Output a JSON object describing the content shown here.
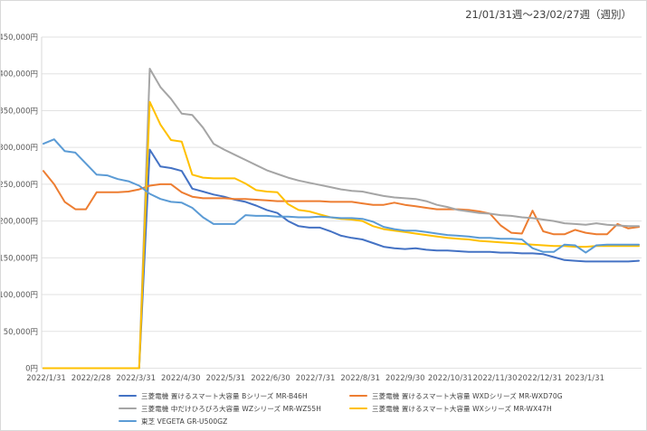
{
  "title": "21/01/31週〜23/02/27週（週別）",
  "chart_data": {
    "type": "line",
    "title": "21/01/31週〜23/02/27週（週別）",
    "x_axis": {
      "unit": "week",
      "tick_labels": [
        "2022/1/31",
        "2022/2/28",
        "2022/3/31",
        "2022/4/30",
        "2022/5/31",
        "2022/6/30",
        "2022/7/31",
        "2022/8/31",
        "2022/9/30",
        "2022/10/31",
        "2022/11/30",
        "2022/12/31",
        "2023/1/31"
      ]
    },
    "y_axis": {
      "min": 0,
      "max": 450000,
      "step": 50000,
      "tick_labels": [
        "0円",
        "50,000円",
        "100,000円",
        "150,000円",
        "200,000円",
        "250,000円",
        "300,000円",
        "350,000円",
        "400,000円",
        "450,000円"
      ]
    },
    "grid": true,
    "legend_position": "bottom",
    "colors": {
      "grid": "#e2e2e2",
      "axis": "#d9d9d9",
      "axis_text": "#595959",
      "title_text": "#404040"
    },
    "series": [
      {
        "name": "三菱電機 置けるスマート大容量 Bシリーズ MR-B46H",
        "color": "#4472C4",
        "values": [
          0,
          0,
          0,
          0,
          0,
          0,
          0,
          0,
          0,
          0,
          297000,
          274000,
          272000,
          268000,
          244000,
          240000,
          236000,
          233000,
          229000,
          226000,
          221000,
          215000,
          211000,
          200000,
          193000,
          191000,
          191000,
          186000,
          180000,
          177000,
          175000,
          170000,
          165000,
          163000,
          162000,
          163000,
          161000,
          160000,
          160000,
          159000,
          158000,
          158000,
          158000,
          157000,
          157000,
          156000,
          156000,
          155000,
          151000,
          147000,
          146000,
          145000,
          145000,
          145000,
          145000,
          145000,
          146000
        ]
      },
      {
        "name": "三菱電機 置けるスマート大容量 WXDシリーズ MR-WXD70G",
        "color": "#ED7D31",
        "values": [
          268000,
          250000,
          226000,
          216000,
          216000,
          239000,
          239000,
          239000,
          240000,
          243000,
          248000,
          250000,
          250000,
          239000,
          233000,
          231000,
          231000,
          231000,
          230000,
          230000,
          229000,
          228000,
          227000,
          227000,
          227000,
          227000,
          227000,
          226000,
          226000,
          226000,
          224000,
          222000,
          222000,
          225000,
          222000,
          220000,
          218000,
          216000,
          216000,
          216000,
          215000,
          213000,
          210000,
          194000,
          184000,
          183000,
          214000,
          186000,
          182000,
          182000,
          188000,
          184000,
          182000,
          182000,
          196000,
          190000,
          192000
        ]
      },
      {
        "name": "三菱電機 中だけひろびろ大容量 WZシリーズ MR-WZ55H",
        "color": "#A5A5A5",
        "values": [
          0,
          0,
          0,
          0,
          0,
          0,
          0,
          0,
          0,
          0,
          407000,
          382000,
          366000,
          346000,
          344000,
          327000,
          305000,
          297000,
          290000,
          283000,
          276000,
          269000,
          264000,
          259000,
          255000,
          252000,
          249000,
          246000,
          243000,
          241000,
          240000,
          237000,
          234000,
          232000,
          231000,
          230000,
          227000,
          222000,
          219000,
          215000,
          213000,
          211000,
          210000,
          208000,
          207000,
          205000,
          204000,
          202000,
          200000,
          197000,
          196000,
          195000,
          197000,
          195000,
          194000,
          193000,
          193000
        ]
      },
      {
        "name": "三菱電機 置けるスマート大容量 WXシリーズ MR-WX47H",
        "color": "#FFC000",
        "values": [
          0,
          0,
          0,
          0,
          0,
          0,
          0,
          0,
          0,
          0,
          362000,
          331000,
          310000,
          308000,
          263000,
          259000,
          258000,
          258000,
          258000,
          251000,
          242000,
          240000,
          239000,
          223000,
          215000,
          213000,
          209000,
          205000,
          203000,
          202000,
          200000,
          193000,
          189000,
          187000,
          185000,
          183000,
          181000,
          179000,
          177000,
          176000,
          175000,
          173000,
          172000,
          171000,
          170000,
          169000,
          168000,
          167000,
          166000,
          166000,
          165000,
          165000,
          166000,
          166000,
          166000,
          166000,
          166000
        ]
      },
      {
        "name": "東芝 VEGETA GR-U500GZ",
        "color": "#5B9BD5",
        "values": [
          305000,
          311000,
          295000,
          293000,
          278000,
          263000,
          262000,
          257000,
          254000,
          248000,
          237000,
          230000,
          226000,
          225000,
          218000,
          205000,
          196000,
          196000,
          196000,
          208000,
          207000,
          207000,
          206000,
          206000,
          205000,
          205000,
          206000,
          205000,
          204000,
          204000,
          203000,
          199000,
          192000,
          189000,
          187000,
          187000,
          185000,
          183000,
          181000,
          180000,
          179000,
          177000,
          177000,
          176000,
          176000,
          175000,
          163000,
          158000,
          158000,
          168000,
          167000,
          157000,
          167000,
          168000,
          168000,
          168000,
          168000
        ]
      }
    ]
  },
  "legend": {
    "rows": [
      [
        0,
        1
      ],
      [
        2,
        3
      ],
      [
        4
      ]
    ]
  }
}
